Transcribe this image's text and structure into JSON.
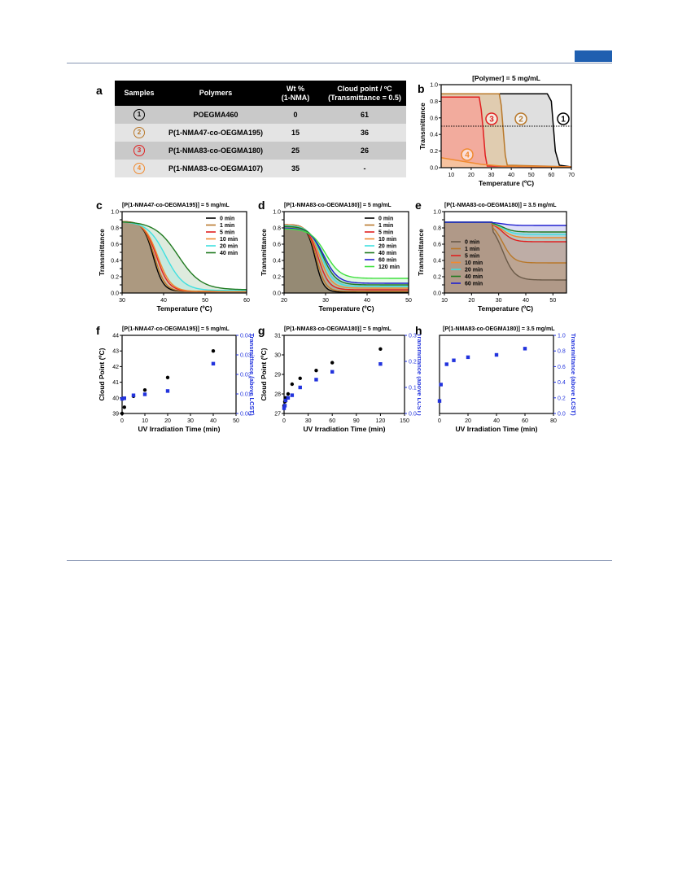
{
  "panel_labels": {
    "a": "a",
    "b": "b",
    "c": "c",
    "d": "d",
    "e": "e",
    "f": "f",
    "g": "g",
    "h": "h"
  },
  "table": {
    "headers": [
      "Samples",
      "Polymers",
      "Wt %\n(1-NMA)",
      "Cloud point / ºC\n(Transmittance = 0.5)"
    ],
    "rows": [
      {
        "sample": "1",
        "polymer": "POEGMA460",
        "wt": "0",
        "cloud": "61",
        "circle_color": "#000000"
      },
      {
        "sample": "2",
        "polymer": "P(1-NMA47-co-OEGMA195)",
        "wt": "15",
        "cloud": "36",
        "circle_color": "#b8782a"
      },
      {
        "sample": "3",
        "polymer": "P(1-NMA83-co-OEGMA180)",
        "wt": "25",
        "cloud": "26",
        "circle_color": "#e02020"
      },
      {
        "sample": "4",
        "polymer": "P(1-NMA83-co-OEGMA107)",
        "wt": "35",
        "cloud": "-",
        "circle_color": "#f08a30"
      }
    ]
  },
  "chart_data": [
    {
      "id": "b",
      "type": "line",
      "title": "[Polymer] = 5 mg/mL",
      "xlabel": "Temperature (ºC)",
      "ylabel": "Transmittance",
      "xlim": [
        5,
        70
      ],
      "ylim": [
        0,
        1.0
      ],
      "xticks": [
        10,
        20,
        30,
        40,
        50,
        60,
        70
      ],
      "yticks": [
        0.0,
        0.2,
        0.4,
        0.6,
        0.8,
        1.0
      ],
      "reference_line": 0.5,
      "series": [
        {
          "name": "1",
          "color": "#000000",
          "fill": "#d9d9d9",
          "x": [
            5,
            58,
            60,
            61,
            62,
            64,
            70
          ],
          "y": [
            0.89,
            0.89,
            0.8,
            0.5,
            0.2,
            0.03,
            0.01
          ]
        },
        {
          "name": "2",
          "color": "#b8782a",
          "fill": "#e0c9a8",
          "x": [
            5,
            34,
            35,
            36,
            37,
            38,
            70
          ],
          "y": [
            0.89,
            0.89,
            0.75,
            0.45,
            0.15,
            0.03,
            0.01
          ]
        },
        {
          "name": "3",
          "color": "#e02020",
          "fill": "#f4a49a",
          "x": [
            5,
            24,
            25,
            26,
            27,
            28,
            70
          ],
          "y": [
            0.85,
            0.85,
            0.7,
            0.45,
            0.15,
            0.02,
            0.01
          ]
        },
        {
          "name": "4",
          "color": "#f08a30",
          "fill": "#f7c6a0",
          "x": [
            5,
            15,
            25,
            35,
            70
          ],
          "y": [
            0.12,
            0.08,
            0.04,
            0.02,
            0.01
          ]
        }
      ]
    },
    {
      "id": "c",
      "type": "line",
      "title": "[P(1-NMA47-co-OEGMA195)] = 5 mg/mL",
      "xlabel": "Temperature (ºC)",
      "ylabel": "Transmittance",
      "xlim": [
        30,
        60
      ],
      "ylim": [
        0,
        1.0
      ],
      "xticks": [
        30,
        40,
        50,
        60
      ],
      "yticks": [
        0.0,
        0.1,
        0.2,
        0.3,
        0.4,
        0.5,
        0.6,
        0.7,
        0.8,
        0.9,
        1.0
      ],
      "series": [
        {
          "name": "0 min",
          "color": "#000000",
          "center": 37.5,
          "width": 1.2,
          "top": 0.88,
          "bottom": 0.02
        },
        {
          "name": "1 min",
          "color": "#b8782a",
          "center": 37.8,
          "width": 1.3,
          "top": 0.88,
          "bottom": 0.02
        },
        {
          "name": "5 min",
          "color": "#e02020",
          "center": 38.3,
          "width": 1.5,
          "top": 0.88,
          "bottom": 0.02
        },
        {
          "name": "10 min",
          "color": "#f08a30",
          "center": 38.6,
          "width": 1.6,
          "top": 0.88,
          "bottom": 0.02
        },
        {
          "name": "20 min",
          "color": "#40e0e0",
          "center": 40.5,
          "width": 2.2,
          "top": 0.88,
          "bottom": 0.03
        },
        {
          "name": "40 min",
          "color": "#207a20",
          "center": 43.5,
          "width": 2.8,
          "top": 0.88,
          "bottom": 0.04
        }
      ]
    },
    {
      "id": "d",
      "type": "line",
      "title": "[P(1-NMA83-co-OEGMA180)] = 5 mg/mL",
      "xlabel": "Temperature (ºC)",
      "ylabel": "Transmittance",
      "xlim": [
        20,
        50
      ],
      "ylim": [
        0,
        1.0
      ],
      "xticks": [
        20,
        30,
        40,
        50
      ],
      "yticks": [
        0.0,
        0.1,
        0.2,
        0.3,
        0.4,
        0.5,
        0.6,
        0.7,
        0.8,
        0.9,
        1.0
      ],
      "series": [
        {
          "name": "0 min",
          "color": "#000000",
          "center": 27.5,
          "width": 1.0,
          "top": 0.84,
          "bottom": 0.01
        },
        {
          "name": "1 min",
          "color": "#b8782a",
          "center": 27.8,
          "width": 1.1,
          "top": 0.84,
          "bottom": 0.02
        },
        {
          "name": "5 min",
          "color": "#e02020",
          "center": 28.2,
          "width": 1.3,
          "top": 0.84,
          "bottom": 0.04
        },
        {
          "name": "10 min",
          "color": "#f08a30",
          "center": 28.6,
          "width": 1.4,
          "top": 0.84,
          "bottom": 0.06
        },
        {
          "name": "20 min",
          "color": "#40e0e0",
          "center": 29.0,
          "width": 1.5,
          "top": 0.83,
          "bottom": 0.08
        },
        {
          "name": "40 min",
          "color": "#207a20",
          "center": 29.3,
          "width": 1.6,
          "top": 0.82,
          "bottom": 0.1
        },
        {
          "name": "60 min",
          "color": "#2020d0",
          "center": 29.6,
          "width": 1.7,
          "top": 0.8,
          "bottom": 0.12
        },
        {
          "name": "120 min",
          "color": "#40e040",
          "center": 30.0,
          "width": 1.8,
          "top": 0.79,
          "bottom": 0.18
        }
      ]
    },
    {
      "id": "e",
      "type": "line",
      "title": "[P(1-NMA83-co-OEGMA180)] = 3.5 mg/mL",
      "xlabel": "Temperature (ºC)",
      "ylabel": "Transmittance",
      "xlim": [
        10,
        55
      ],
      "ylim": [
        0,
        1.0
      ],
      "xticks": [
        10,
        20,
        30,
        40,
        50
      ],
      "yticks": [
        0.0,
        0.1,
        0.2,
        0.3,
        0.4,
        0.5,
        0.6,
        0.7,
        0.8,
        0.9,
        1.0
      ],
      "series": [
        {
          "name": "0 min",
          "color": "#6b5a48",
          "center": 31.5,
          "width": 2.2,
          "top": 0.87,
          "bottom": 0.16
        },
        {
          "name": "1 min",
          "color": "#b8782a",
          "center": 31.5,
          "width": 2.0,
          "top": 0.87,
          "bottom": 0.37
        },
        {
          "name": "5 min",
          "color": "#e02020",
          "center": 31.5,
          "width": 2.0,
          "top": 0.87,
          "bottom": 0.63
        },
        {
          "name": "10 min",
          "color": "#f08a30",
          "center": 31.5,
          "width": 2.0,
          "top": 0.87,
          "bottom": 0.68
        },
        {
          "name": "20 min",
          "color": "#40e0e0",
          "center": 31.5,
          "width": 2.0,
          "top": 0.87,
          "bottom": 0.72
        },
        {
          "name": "40 min",
          "color": "#207a20",
          "center": 31.5,
          "width": 2.0,
          "top": 0.87,
          "bottom": 0.75
        },
        {
          "name": "60 min",
          "color": "#2020d0",
          "center": 31.5,
          "width": 2.0,
          "top": 0.87,
          "bottom": 0.83
        }
      ]
    },
    {
      "id": "f",
      "type": "scatter",
      "title": "[P(1-NMA47-co-OEGMA195)] = 5 mg/mL",
      "xlabel": "UV Irradiation Time (min)",
      "ylabel": "Cloud Point (ºC)",
      "y2label": "Transmittance (above LCST)",
      "xlim": [
        0,
        50
      ],
      "ylim": [
        39,
        44
      ],
      "y2lim": [
        0,
        0.04
      ],
      "xticks": [
        0,
        10,
        20,
        30,
        40,
        50
      ],
      "yticks": [
        39,
        40,
        41,
        42,
        43,
        44
      ],
      "y2ticks": [
        0.0,
        0.01,
        0.02,
        0.03,
        0.04
      ],
      "series": [
        {
          "name": "Cloud Point",
          "color": "#000000",
          "marker": "circle",
          "axis": "y",
          "x": [
            0,
            1,
            5,
            10,
            20,
            40
          ],
          "y": [
            39.0,
            39.4,
            40.1,
            40.5,
            41.3,
            43.0
          ]
        },
        {
          "name": "Transmittance",
          "color": "#2233dd",
          "marker": "square",
          "axis": "y2",
          "x": [
            0,
            1,
            5,
            10,
            20,
            40
          ],
          "y": [
            0.0075,
            0.0078,
            0.0093,
            0.0098,
            0.0115,
            0.0255
          ]
        }
      ]
    },
    {
      "id": "g",
      "type": "scatter",
      "title": "[P(1-NMA83-co-OEGMA180)] = 5 mg/mL",
      "xlabel": "UV Irradiation Time (min)",
      "ylabel": "Cloud Point (ºC)",
      "y2label": "Transmittance (above LCST)",
      "xlim": [
        0,
        150
      ],
      "ylim": [
        27,
        31
      ],
      "y2lim": [
        0,
        0.3
      ],
      "xticks": [
        0,
        30,
        60,
        90,
        120,
        150
      ],
      "yticks": [
        27,
        28,
        29,
        30,
        31
      ],
      "y2ticks": [
        0.0,
        0.1,
        0.2,
        0.3
      ],
      "series": [
        {
          "name": "Cloud Point",
          "color": "#000000",
          "marker": "circle",
          "axis": "y",
          "x": [
            0,
            1,
            2,
            5,
            10,
            20,
            40,
            60,
            120
          ],
          "y": [
            27.4,
            27.6,
            27.8,
            28.0,
            28.5,
            28.8,
            29.2,
            29.6,
            30.3
          ]
        },
        {
          "name": "Transmittance",
          "color": "#2233dd",
          "marker": "square",
          "axis": "y2",
          "x": [
            0,
            1,
            2,
            5,
            10,
            20,
            40,
            60,
            120
          ],
          "y": [
            0.02,
            0.03,
            0.05,
            0.06,
            0.07,
            0.1,
            0.13,
            0.16,
            0.19
          ]
        }
      ]
    },
    {
      "id": "h",
      "type": "scatter",
      "title": "[P(1-NMA83-co-OEGMA180)] = 3.5 mg/mL",
      "xlabel": "UV Irradiation Time (min)",
      "ylabel": "",
      "y2label": "Transmittance (above LCST)",
      "xlim": [
        0,
        80
      ],
      "ylim": [
        0,
        1.0
      ],
      "xticks": [
        0,
        20,
        40,
        60,
        80
      ],
      "yticks": [
        0.0,
        0.2,
        0.4,
        0.6,
        0.8,
        1.0
      ],
      "series": [
        {
          "name": "Transmittance",
          "color": "#2233dd",
          "marker": "square",
          "axis": "y",
          "x": [
            0,
            1,
            5,
            10,
            20,
            40,
            60
          ],
          "y": [
            0.16,
            0.37,
            0.63,
            0.68,
            0.72,
            0.75,
            0.83
          ]
        }
      ]
    }
  ]
}
